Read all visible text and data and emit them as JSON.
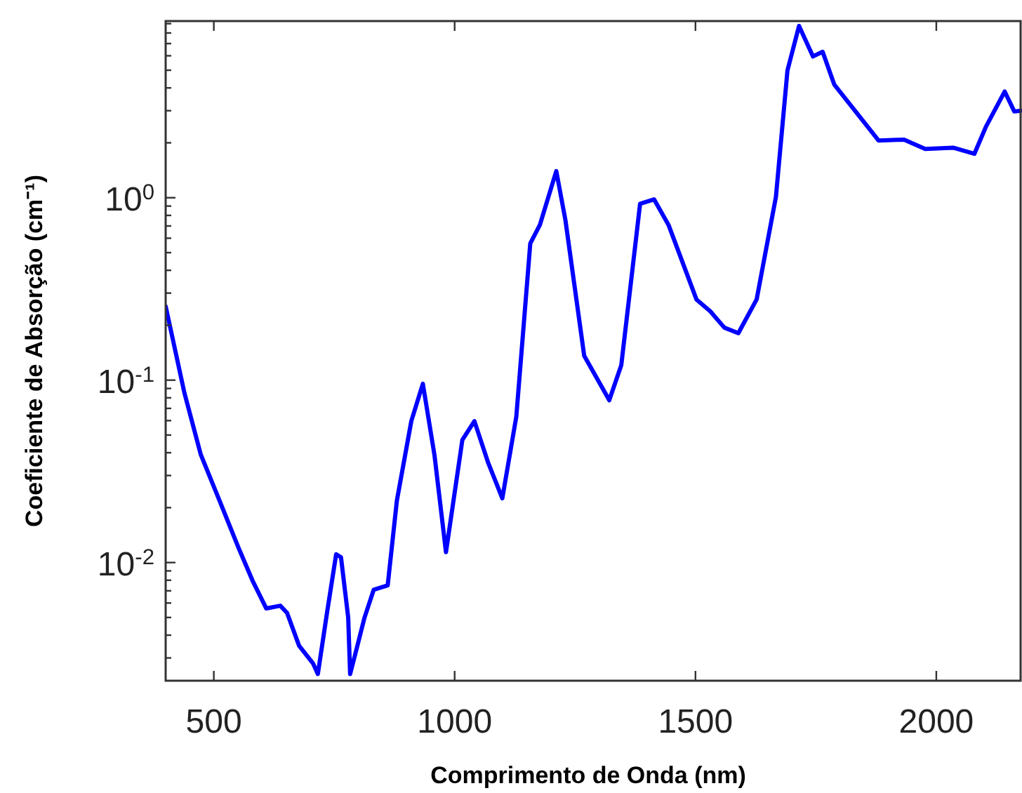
{
  "chart_data": {
    "type": "line",
    "xlabel": "Comprimento de Onda (nm)",
    "ylabel": "Coeficiente de Absorção (cm⁻¹)",
    "log": "y",
    "grid": false,
    "marker": "none",
    "line_style": "solid",
    "xlim": [
      400,
      2175
    ],
    "xticks": [
      500,
      1000,
      1500,
      2000
    ],
    "ylim": [
      0.00225,
      9.3
    ],
    "yticks": [
      {
        "value": 0.003,
        "label": null
      },
      {
        "value": 0.004,
        "label": null
      },
      {
        "value": 0.005,
        "label": null
      },
      {
        "value": 0.006,
        "label": null
      },
      {
        "value": 0.007,
        "label": null
      },
      {
        "value": 0.008,
        "label": null
      },
      {
        "value": 0.009,
        "label": null
      },
      {
        "value": 0.01,
        "label": "10$^{-2}$"
      },
      {
        "value": 0.02,
        "label": null
      },
      {
        "value": 0.03,
        "label": null
      },
      {
        "value": 0.04,
        "label": null
      },
      {
        "value": 0.05,
        "label": null
      },
      {
        "value": 0.06,
        "label": null
      },
      {
        "value": 0.07,
        "label": null
      },
      {
        "value": 0.08,
        "label": null
      },
      {
        "value": 0.09,
        "label": null
      },
      {
        "value": 0.1,
        "label": "10$^{-1}$"
      },
      {
        "value": 0.2,
        "label": null
      },
      {
        "value": 0.3,
        "label": null
      },
      {
        "value": 0.4,
        "label": null
      },
      {
        "value": 0.5,
        "label": null
      },
      {
        "value": 0.6,
        "label": null
      },
      {
        "value": 0.7,
        "label": null
      },
      {
        "value": 0.8,
        "label": null
      },
      {
        "value": 0.9,
        "label": null
      },
      {
        "value": 1,
        "label": "10$^{0}$"
      },
      {
        "value": 2,
        "label": null
      },
      {
        "value": 3,
        "label": null
      },
      {
        "value": 4,
        "label": null
      },
      {
        "value": 5,
        "label": null
      },
      {
        "value": 6,
        "label": null
      },
      {
        "value": 7,
        "label": null
      },
      {
        "value": 8,
        "label": null
      },
      {
        "value": 9,
        "label": null
      }
    ],
    "series": [
      {
        "color": "#0000ff",
        "x": [
          400,
          439,
          473,
          512,
          551,
          580,
          609,
          638,
          652,
          677,
          706,
          716,
          735,
          754,
          764,
          779,
          783,
          793,
          813,
          832,
          861,
          880,
          910,
          934,
          958,
          982,
          1016,
          1041,
          1070,
          1099,
          1128,
          1157,
          1177,
          1211,
          1230,
          1269,
          1321,
          1346,
          1385,
          1414,
          1444,
          1502,
          1531,
          1560,
          1589,
          1627,
          1667,
          1691,
          1715,
          1744,
          1764,
          1788,
          1880,
          1933,
          1977,
          2035,
          2079,
          2103,
          2142,
          2162,
          2175
        ],
        "values": [
          0.254,
          0.085,
          0.039,
          0.0218,
          0.0121,
          0.008,
          0.0056,
          0.0058,
          0.0053,
          0.0035,
          0.0028,
          0.00245,
          0.0053,
          0.0111,
          0.0107,
          0.005,
          0.00245,
          0.0031,
          0.005,
          0.0071,
          0.0075,
          0.0218,
          0.0596,
          0.0955,
          0.039,
          0.0114,
          0.047,
          0.0596,
          0.035,
          0.0225,
          0.063,
          0.561,
          0.71,
          1.4,
          0.753,
          0.136,
          0.0776,
          0.121,
          0.927,
          0.98,
          0.71,
          0.277,
          0.238,
          0.194,
          0.181,
          0.277,
          1.01,
          4.99,
          8.74,
          5.95,
          6.31,
          4.18,
          2.06,
          2.08,
          1.85,
          1.88,
          1.74,
          2.45,
          3.82,
          2.97,
          3.0
        ]
      }
    ]
  }
}
